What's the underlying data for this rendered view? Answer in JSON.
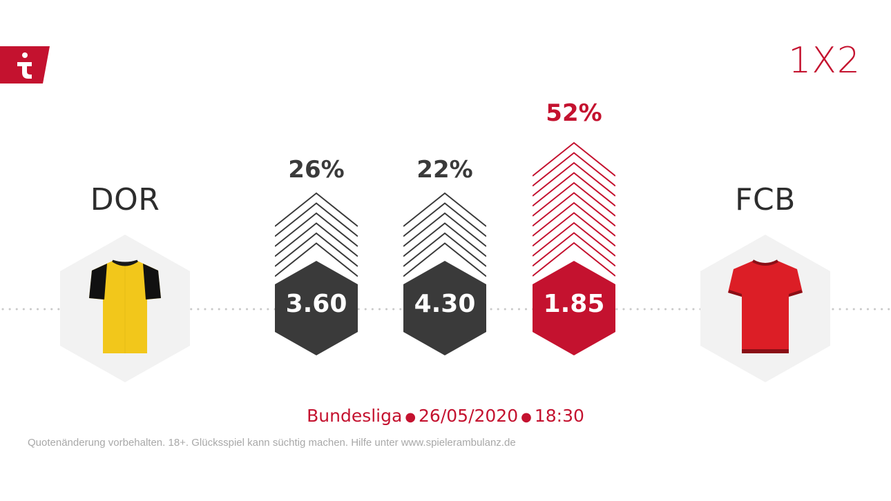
{
  "brand": {
    "logo_icon": "tipico-t-icon",
    "accent_color": "#c4122f",
    "dark_color": "#3a3a3a"
  },
  "market": "1X2",
  "home_team": {
    "code": "DOR",
    "shirt_color": "#f2c71b",
    "sleeve_color": "#111111"
  },
  "away_team": {
    "code": "FCB",
    "shirt_color": "#dc1e26",
    "sleeve_color": "#8a0f16"
  },
  "outcomes": [
    {
      "key": "1",
      "probability": "26%",
      "odds": "3.60",
      "chevron_count": 6
    },
    {
      "key": "X",
      "probability": "22%",
      "odds": "4.30",
      "chevron_count": 6
    },
    {
      "key": "2",
      "probability": "52%",
      "odds": "1.85",
      "chevron_count": 11
    }
  ],
  "match": {
    "league": "Bundesliga",
    "date": "26/05/2020",
    "time": "18:30"
  },
  "disclaimer": "Quotenänderung vorbehalten. 18+. Glücksspiel kann süchtig machen. Hilfe unter www.spielerambulanz.de"
}
